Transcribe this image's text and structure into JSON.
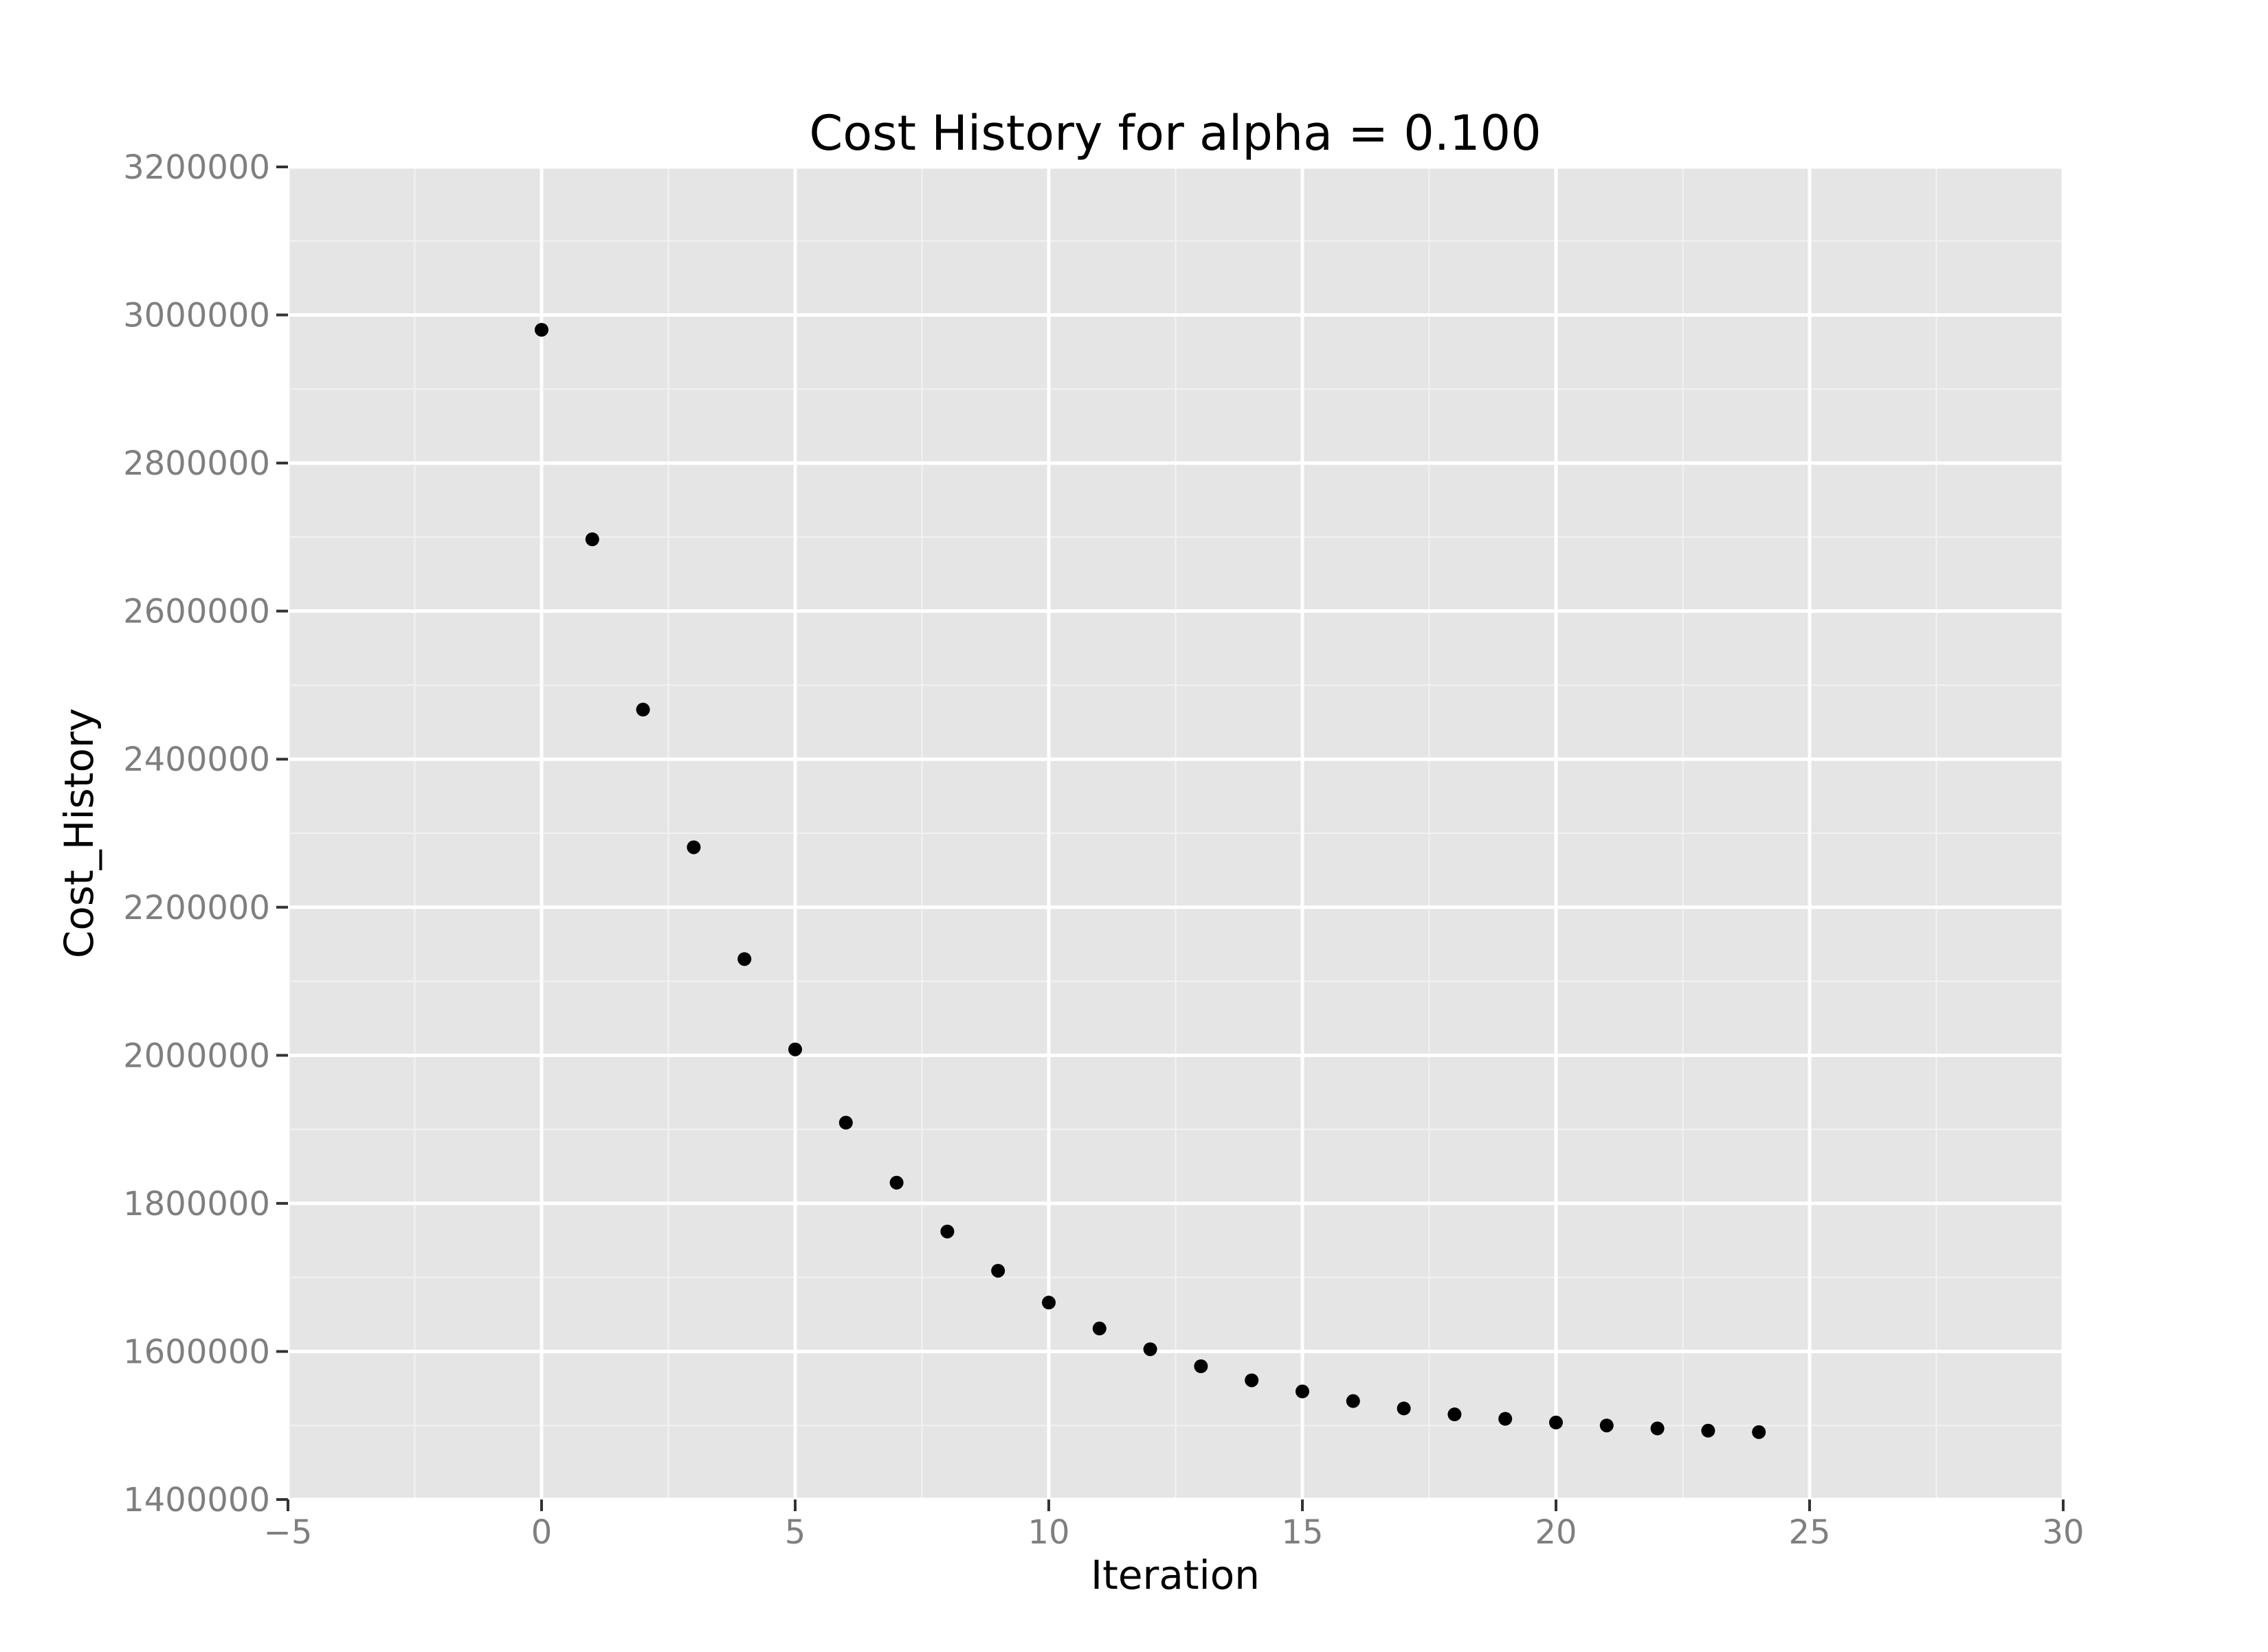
{
  "chart_data": {
    "type": "scatter",
    "title": "Cost History for alpha = 0.100",
    "xlabel": "Iteration",
    "ylabel": "Cost_History",
    "xlim": [
      -5,
      30
    ],
    "ylim": [
      1400000,
      3200000
    ],
    "x_ticks": [
      -5,
      0,
      5,
      10,
      15,
      20,
      25,
      30
    ],
    "x_tick_labels": [
      "−5",
      "0",
      "5",
      "10",
      "15",
      "20",
      "25",
      "30"
    ],
    "y_ticks": [
      1400000,
      1600000,
      1800000,
      2000000,
      2200000,
      2400000,
      2600000,
      2800000,
      3000000,
      3200000
    ],
    "y_tick_labels": [
      "1400000",
      "1600000",
      "1800000",
      "2000000",
      "2200000",
      "2400000",
      "2600000",
      "2800000",
      "3000000",
      "3200000"
    ],
    "grid": true,
    "x": [
      0,
      1,
      2,
      3,
      4,
      5,
      6,
      7,
      8,
      9,
      10,
      11,
      12,
      13,
      14,
      15,
      16,
      17,
      18,
      19,
      20,
      21,
      22,
      23,
      24
    ],
    "y": [
      2980000,
      2697000,
      2467000,
      2281000,
      2130000,
      2008000,
      1909000,
      1828000,
      1762000,
      1709000,
      1666000,
      1631000,
      1603000,
      1580000,
      1561000,
      1546000,
      1533000,
      1523000,
      1515000,
      1509000,
      1504000,
      1500000,
      1496000,
      1493000,
      1491000
    ],
    "colors": {
      "panel": "#e5e5e5",
      "grid_major": "#ffffff",
      "grid_minor": "#f2f2f2",
      "point": "#000000",
      "tick_text": "#7f7f7f"
    }
  }
}
